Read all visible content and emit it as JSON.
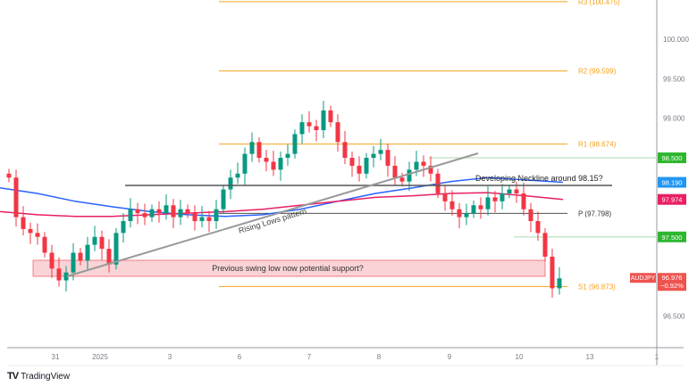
{
  "chart_data": {
    "type": "candlestick",
    "symbol": "AUDJPY",
    "last_price": "96.976",
    "change": "−0.92%",
    "y_ticks": [
      "100.500",
      "100.000",
      "99.500",
      "99.000",
      "98.500",
      "98.000",
      "97.500",
      "97.000",
      "96.500"
    ],
    "y_tick_labels": [
      "100.000",
      "99.500",
      "99.000",
      "96.500"
    ],
    "ylim": [
      96.0,
      100.5
    ],
    "x_tick_labels": [
      "31",
      "2025",
      "3",
      "6",
      "7",
      "8",
      "9",
      "10",
      "13",
      "1"
    ],
    "closes": [
      98.25,
      97.75,
      97.6,
      97.55,
      97.5,
      97.3,
      97.1,
      96.95,
      97.05,
      97.3,
      97.2,
      97.4,
      97.5,
      97.35,
      97.15,
      97.55,
      97.7,
      97.85,
      97.8,
      97.75,
      97.85,
      97.8,
      97.9,
      97.75,
      97.85,
      97.8,
      97.7,
      97.75,
      97.7,
      97.85,
      98.1,
      98.25,
      98.3,
      98.55,
      98.7,
      98.5,
      98.45,
      98.35,
      98.5,
      98.55,
      98.8,
      98.95,
      98.9,
      98.85,
      99.1,
      98.95,
      98.7,
      98.5,
      98.4,
      98.3,
      98.5,
      98.55,
      98.6,
      98.4,
      98.25,
      98.2,
      98.35,
      98.45,
      98.4,
      98.3,
      98.05,
      97.95,
      97.85,
      97.75,
      97.8,
      97.9,
      97.85,
      98.0,
      97.95,
      98.05,
      98.1,
      98.05,
      97.85,
      97.7,
      97.55,
      97.25,
      96.85,
      96.976
    ],
    "ma_blue": {
      "value": "98.190",
      "color": "#2962ff",
      "points": [
        98.12,
        98.05,
        97.95,
        97.88,
        97.82,
        97.78,
        97.76,
        97.78,
        97.85,
        97.95,
        98.05,
        98.12,
        98.2,
        98.25,
        98.22,
        98.19
      ]
    },
    "ma_pink": {
      "value": "97.974",
      "color": "#e91e63",
      "points": [
        97.82,
        97.78,
        97.76,
        97.76,
        97.78,
        97.8,
        97.82,
        97.85,
        97.9,
        97.95,
        98.0,
        98.02,
        98.05,
        98.06,
        98.02,
        97.974
      ]
    },
    "pivots": [
      {
        "label": "R3 (100.475)",
        "value": 100.475
      },
      {
        "label": "R2 (99.599)",
        "value": 99.599
      },
      {
        "label": "R1 (98.674)",
        "value": 98.674
      },
      {
        "label": "P (97.798)",
        "value": 97.798
      },
      {
        "label": "S1 (96.873)",
        "value": 96.873
      }
    ],
    "levels": [
      {
        "value": 98.5,
        "label": "98.500"
      },
      {
        "value": 97.5,
        "label": "97.500"
      }
    ],
    "annotations": {
      "neckline": "Developing Neckline around 98.15?",
      "trend": "Rising Lows pattern",
      "support": "Previous swing low now potential support?"
    },
    "colors": {
      "up": "#089981",
      "down": "#f23645",
      "pivot": "#f7a21b",
      "level": "#4caf50",
      "label_green": "#2fb62f"
    }
  },
  "brand": "TradingView"
}
